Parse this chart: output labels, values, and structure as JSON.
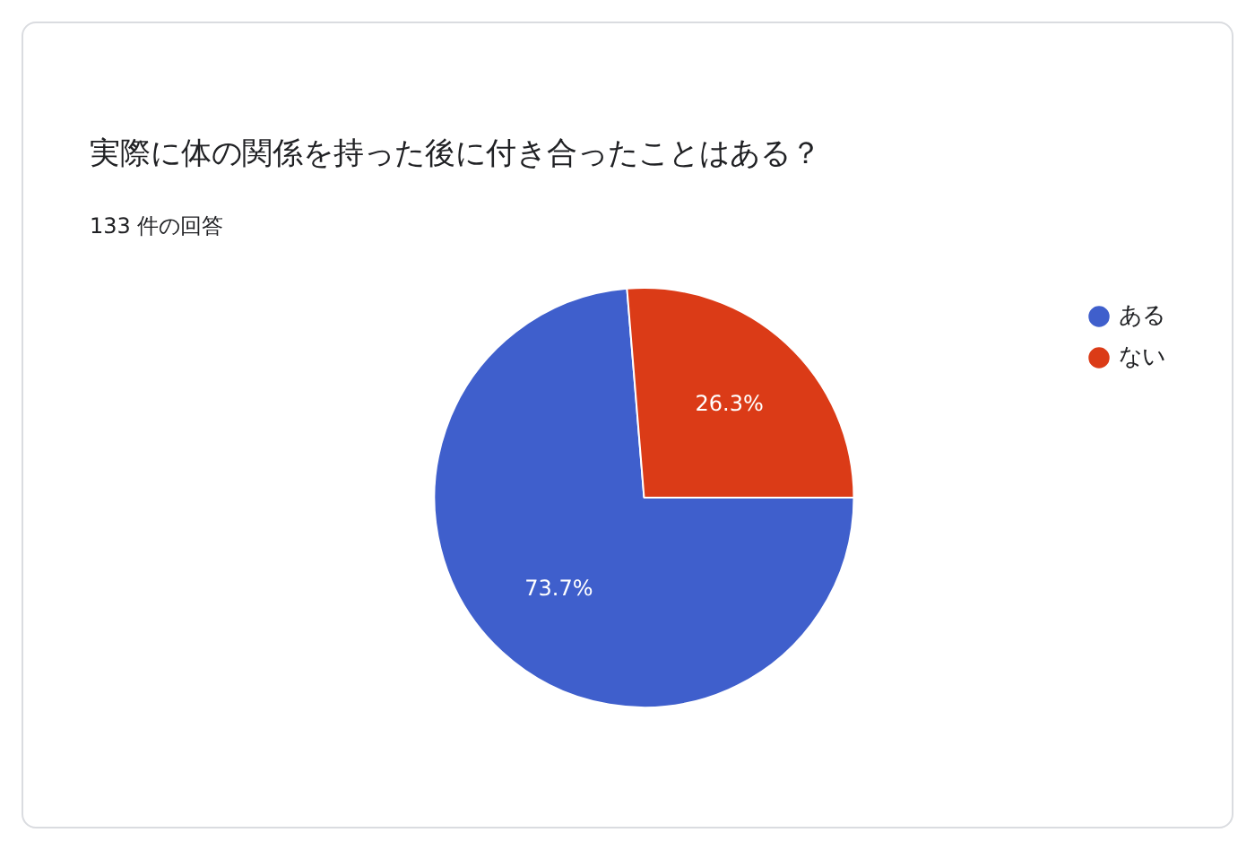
{
  "chart_data": {
    "type": "pie",
    "title": "実際に体の関係を持った後に付き合ったことはある？",
    "subtitle": "133 件の回答",
    "categories": [
      "ある",
      "ない"
    ],
    "values": [
      73.7,
      26.3
    ],
    "colors": [
      "#3f5fcc",
      "#db3b17"
    ],
    "value_labels": [
      "73.7%",
      "26.3%"
    ],
    "legend": "top right"
  }
}
